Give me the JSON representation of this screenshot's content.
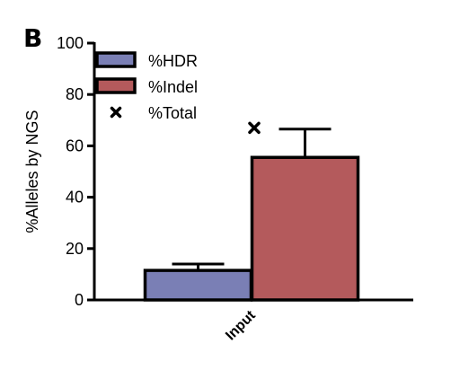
{
  "panel_label": "B",
  "chart_data": {
    "type": "bar",
    "title": "",
    "xlabel": "",
    "ylabel": "%Alleles by NGS",
    "categories": [
      "Input"
    ],
    "ylim": [
      0,
      100
    ],
    "yticks": [
      0,
      20,
      40,
      60,
      80,
      100
    ],
    "grid": false,
    "legend_position": "top-left",
    "series": [
      {
        "name": "%HDR",
        "values": [
          11.5
        ],
        "error": [
          2.5
        ],
        "color": "#7a7fb5",
        "marker": "bar"
      },
      {
        "name": "%Indel",
        "values": [
          55.5
        ],
        "error": [
          11
        ],
        "color": "#b45a5c",
        "marker": "bar"
      },
      {
        "name": "%Total",
        "values": [
          67
        ],
        "color": "#000000",
        "marker": "x"
      }
    ]
  }
}
